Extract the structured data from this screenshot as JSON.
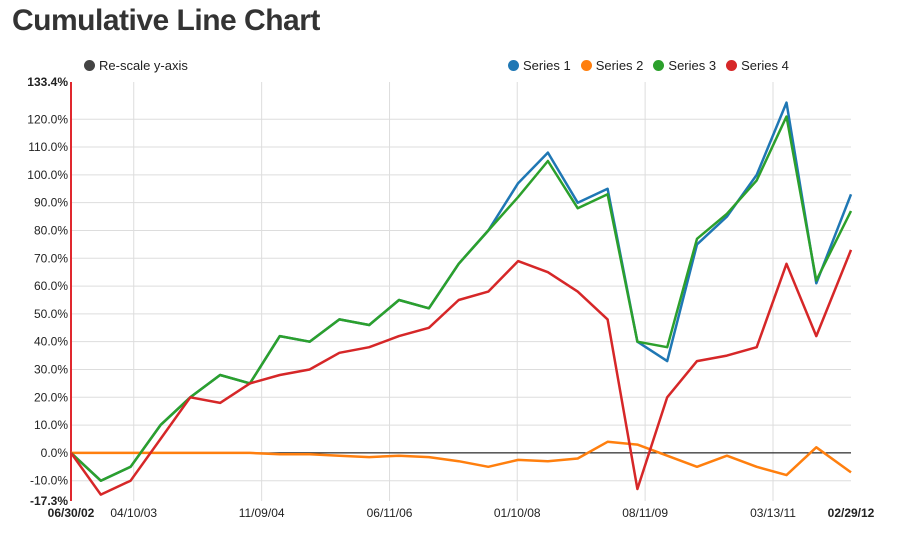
{
  "page": {
    "title": "Cumulative Line Chart"
  },
  "controls": {
    "rescale_label": "Re-scale y-axis"
  },
  "colors": {
    "axis_marker": "#e0282e",
    "grid": "#dddddd",
    "zero_line": "#000000"
  },
  "chart_data": {
    "type": "line",
    "title": "Cumulative Line Chart",
    "xlabel": "",
    "ylabel": "",
    "ylim": [
      -17.3,
      133.4
    ],
    "xlim": [
      "06/30/02",
      "02/29/12"
    ],
    "y_ticks": [
      -17.3,
      -10,
      0,
      10,
      20,
      30,
      40,
      50,
      60,
      70,
      80,
      90,
      100,
      110,
      120,
      133.4
    ],
    "y_tick_labels": [
      "-17.3%",
      "-10.0%",
      "0.0%",
      "10.0%",
      "20.0%",
      "30.0%",
      "40.0%",
      "50.0%",
      "60.0%",
      "70.0%",
      "80.0%",
      "90.0%",
      "100.0%",
      "110.0%",
      "120.0%",
      "133.4%"
    ],
    "x_ticks": [
      "06/30/02",
      "04/10/03",
      "11/09/04",
      "06/11/06",
      "01/10/08",
      "08/11/09",
      "03/13/11",
      "02/29/12"
    ],
    "grid": true,
    "legend_position": "top-right",
    "x": [
      "06/30/02",
      "11/12/02",
      "03/27/03",
      "08/09/03",
      "12/22/03",
      "05/05/04",
      "09/17/04",
      "01/30/05",
      "06/14/05",
      "10/27/05",
      "03/11/06",
      "07/24/06",
      "12/06/06",
      "04/20/07",
      "09/01/07",
      "01/14/08",
      "05/28/08",
      "10/10/08",
      "02/22/09",
      "07/07/09",
      "11/19/09",
      "04/03/10",
      "08/16/10",
      "12/29/10",
      "05/13/11",
      "09/25/11",
      "02/29/12"
    ],
    "series": [
      {
        "name": "Series 1",
        "color": "#1f77b4",
        "values": [
          0,
          -10,
          -5,
          10,
          20,
          28,
          25,
          42,
          40,
          48,
          46,
          55,
          52,
          68,
          80,
          97,
          108,
          90,
          95,
          40,
          33,
          75,
          85,
          100,
          126,
          61,
          93
        ]
      },
      {
        "name": "Series 2",
        "color": "#ff7f0e",
        "values": [
          0,
          0,
          0,
          0,
          0,
          0,
          0,
          -0.5,
          -0.5,
          -1,
          -1.5,
          -1,
          -1.5,
          -3,
          -5,
          -2.5,
          -3,
          -2,
          4,
          3,
          -1,
          -5,
          -1,
          -5,
          -8,
          2,
          -7
        ]
      },
      {
        "name": "Series 3",
        "color": "#2ca02c",
        "values": [
          0,
          -10,
          -5,
          10,
          20,
          28,
          25,
          42,
          40,
          48,
          46,
          55,
          52,
          68,
          80,
          92,
          105,
          88,
          93,
          40,
          38,
          77,
          86,
          98,
          121,
          62,
          87
        ]
      },
      {
        "name": "Series 4",
        "color": "#d62728",
        "values": [
          0,
          -15,
          -10,
          5,
          20,
          18,
          25,
          28,
          30,
          36,
          38,
          42,
          45,
          55,
          58,
          69,
          65,
          58,
          48,
          -13,
          20,
          33,
          35,
          38,
          68,
          42,
          73
        ]
      }
    ]
  }
}
